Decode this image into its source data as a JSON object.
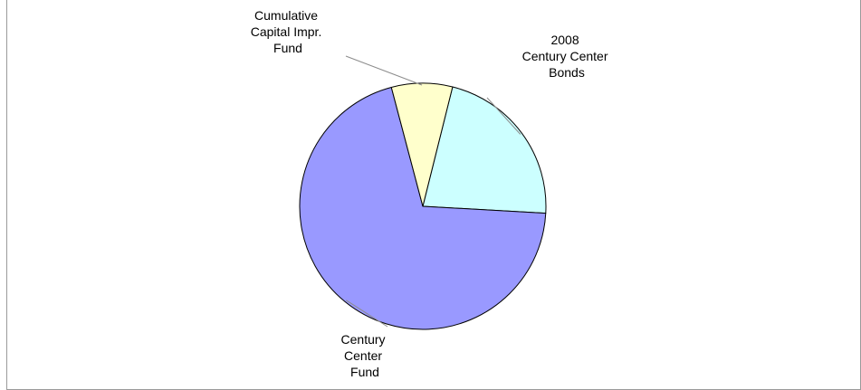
{
  "chart_data": {
    "type": "pie",
    "title": "",
    "slices": [
      {
        "label_lines": [
          "2008",
          "Century Center",
          "Bonds"
        ],
        "value": 22
      },
      {
        "label_lines": [
          "Century",
          "Center",
          "Fund"
        ],
        "value": 70
      },
      {
        "label_lines": [
          "Cumulative",
          "Capital Impr.",
          "Fund"
        ],
        "value": 8
      }
    ],
    "colors": [
      "#ccffff",
      "#9999ff",
      "#ffffcc"
    ],
    "slice_border": "#000000",
    "leader_line_color": "#8c8c8c",
    "legend": "none",
    "start_angle_deg": 14
  }
}
